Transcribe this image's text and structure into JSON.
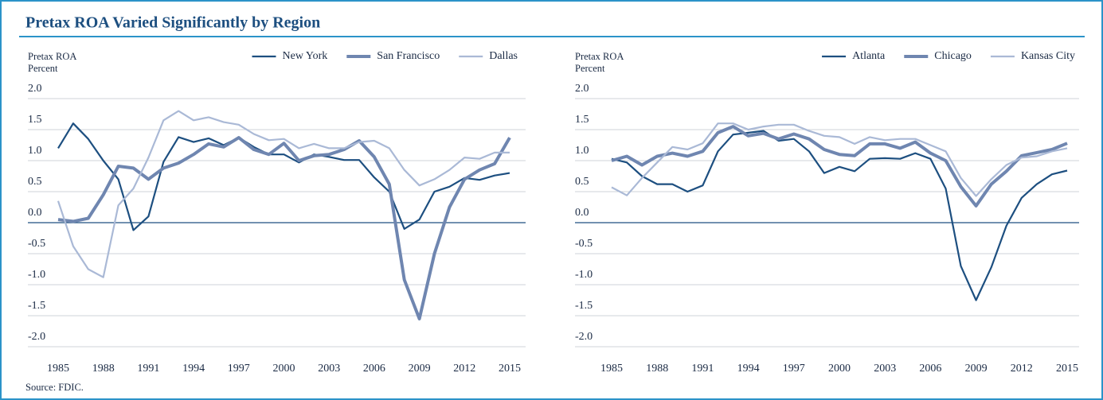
{
  "title": "Pretax ROA Varied Significantly by Region",
  "source": "Source: FDIC.",
  "chart_data": [
    {
      "type": "line",
      "y_label": "Pretax ROA",
      "y_unit": "Percent",
      "x": [
        1985,
        1986,
        1987,
        1988,
        1989,
        1990,
        1991,
        1992,
        1993,
        1994,
        1995,
        1996,
        1997,
        1998,
        1999,
        2000,
        2001,
        2002,
        2003,
        2004,
        2005,
        2006,
        2007,
        2008,
        2009,
        2010,
        2011,
        2012,
        2013,
        2014,
        2015
      ],
      "xlim": [
        1985,
        2015
      ],
      "xticks": [
        1985,
        1988,
        1991,
        1994,
        1997,
        2000,
        2003,
        2006,
        2009,
        2012,
        2015
      ],
      "ylim": [
        -2,
        2
      ],
      "yticks": [
        {
          "value": 2,
          "label": "2.0"
        },
        1.5,
        {
          "value": 1,
          "label": "1.0"
        },
        0.5,
        {
          "value": 0,
          "label": "0.0"
        },
        -0.5,
        {
          "value": -1,
          "label": "-1.0"
        },
        -1.5,
        {
          "value": -2,
          "label": "-2.0"
        }
      ],
      "grid": true,
      "series": [
        {
          "name": "New York",
          "color": "#1d4f80",
          "values": [
            1.2,
            1.6,
            1.35,
            1.0,
            0.7,
            -0.12,
            0.1,
            0.98,
            1.38,
            1.3,
            1.36,
            1.25,
            1.37,
            1.22,
            1.1,
            1.1,
            0.97,
            1.1,
            1.06,
            1.01,
            1.01,
            0.73,
            0.5,
            -0.1,
            0.05,
            0.5,
            0.58,
            0.72,
            0.69,
            0.76,
            0.8
          ]
        },
        {
          "name": "San Francisco",
          "color": "#6f86b0",
          "values": [
            0.05,
            0.02,
            0.07,
            0.45,
            0.91,
            0.88,
            0.7,
            0.88,
            0.96,
            1.1,
            1.27,
            1.22,
            1.37,
            1.18,
            1.1,
            1.28,
            1.0,
            1.08,
            1.1,
            1.18,
            1.32,
            1.06,
            0.62,
            -0.92,
            -1.55,
            -0.5,
            0.25,
            0.7,
            0.85,
            0.95,
            1.37
          ]
        },
        {
          "name": "Dallas",
          "color": "#aab9d6",
          "values": [
            0.35,
            -0.38,
            -0.75,
            -0.88,
            0.28,
            0.55,
            1.05,
            1.65,
            1.8,
            1.65,
            1.7,
            1.62,
            1.58,
            1.43,
            1.33,
            1.35,
            1.2,
            1.27,
            1.2,
            1.2,
            1.3,
            1.32,
            1.2,
            0.85,
            0.6,
            0.7,
            0.85,
            1.05,
            1.03,
            1.13,
            1.13
          ]
        }
      ]
    },
    {
      "type": "line",
      "y_label": "Pretax ROA",
      "y_unit": "Percent",
      "x": [
        1985,
        1986,
        1987,
        1988,
        1989,
        1990,
        1991,
        1992,
        1993,
        1994,
        1995,
        1996,
        1997,
        1998,
        1999,
        2000,
        2001,
        2002,
        2003,
        2004,
        2005,
        2006,
        2007,
        2008,
        2009,
        2010,
        2011,
        2012,
        2013,
        2014,
        2015
      ],
      "xlim": [
        1985,
        2015
      ],
      "xticks": [
        1985,
        1988,
        1991,
        1994,
        1997,
        2000,
        2003,
        2006,
        2009,
        2012,
        2015
      ],
      "ylim": [
        -2,
        2
      ],
      "yticks": [
        {
          "value": 2,
          "label": "2.0"
        },
        1.5,
        {
          "value": 1,
          "label": "1.0"
        },
        0.5,
        {
          "value": 0,
          "label": "0.0"
        },
        -0.5,
        {
          "value": -1,
          "label": "-1.0"
        },
        -1.5,
        {
          "value": -2,
          "label": "-2.0"
        }
      ],
      "grid": true,
      "series": [
        {
          "name": "Atlanta",
          "color": "#1d4f80",
          "values": [
            1.03,
            0.97,
            0.75,
            0.62,
            0.62,
            0.5,
            0.6,
            1.15,
            1.42,
            1.45,
            1.48,
            1.32,
            1.35,
            1.15,
            0.8,
            0.9,
            0.83,
            1.03,
            1.04,
            1.03,
            1.12,
            1.03,
            0.55,
            -0.7,
            -1.25,
            -0.72,
            -0.05,
            0.4,
            0.62,
            0.78,
            0.84
          ]
        },
        {
          "name": "Chicago",
          "color": "#6f86b0",
          "values": [
            1.0,
            1.07,
            0.93,
            1.07,
            1.12,
            1.07,
            1.15,
            1.45,
            1.55,
            1.4,
            1.44,
            1.35,
            1.43,
            1.35,
            1.18,
            1.1,
            1.08,
            1.27,
            1.27,
            1.2,
            1.3,
            1.12,
            1.0,
            0.58,
            0.27,
            0.62,
            0.83,
            1.08,
            1.13,
            1.18,
            1.28
          ]
        },
        {
          "name": "Kansas City",
          "color": "#aab9d6",
          "values": [
            0.57,
            0.44,
            0.72,
            0.97,
            1.22,
            1.18,
            1.28,
            1.6,
            1.6,
            1.5,
            1.55,
            1.58,
            1.58,
            1.48,
            1.4,
            1.38,
            1.27,
            1.38,
            1.33,
            1.35,
            1.35,
            1.25,
            1.15,
            0.72,
            0.43,
            0.7,
            0.93,
            1.05,
            1.07,
            1.15,
            1.2
          ]
        }
      ]
    }
  ]
}
